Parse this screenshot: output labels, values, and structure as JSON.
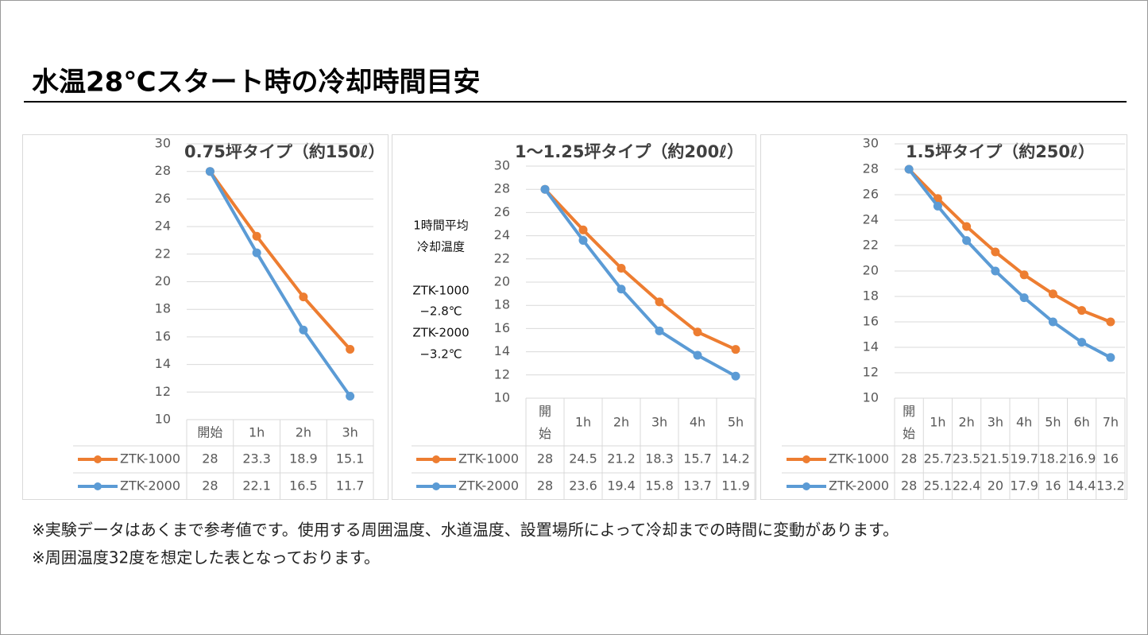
{
  "title": "水温28℃スタート時の冷却時間目安",
  "notes": [
    "※実験データはあくまで参考値です。使用する周囲温度、水道温度、設置場所によって冷却までの時間に変動があります。",
    "※周囲温度32度を想定した表となっております。"
  ],
  "chart_data": [
    {
      "type": "line",
      "title": "0.75坪タイプ（約150ℓ）",
      "categories": [
        "開始",
        "1h",
        "2h",
        "3h"
      ],
      "series": [
        {
          "name": "ZTK-1000",
          "color": "#ed7d31",
          "values": [
            28,
            23.3,
            18.9,
            15.1
          ]
        },
        {
          "name": "ZTK-2000",
          "color": "#5b9bd5",
          "values": [
            28,
            22.1,
            16.5,
            11.7
          ]
        }
      ],
      "ylim": [
        10,
        30
      ],
      "yticks": [
        10,
        12,
        14,
        16,
        18,
        20,
        22,
        24,
        26,
        28,
        30
      ],
      "grid": true
    },
    {
      "type": "line",
      "title": "1～1.25坪タイプ（約200ℓ）",
      "categories": [
        "開始",
        "1h",
        "2h",
        "3h",
        "4h",
        "5h"
      ],
      "annotations": [
        "1時間平均",
        "冷却温度",
        "ZTK-1000",
        "−2.8℃",
        "ZTK-2000",
        "−3.2℃"
      ],
      "series": [
        {
          "name": "ZTK-1000",
          "color": "#ed7d31",
          "values": [
            28,
            24.5,
            21.2,
            18.3,
            15.7,
            14.2
          ]
        },
        {
          "name": "ZTK-2000",
          "color": "#5b9bd5",
          "values": [
            28,
            23.6,
            19.4,
            15.8,
            13.7,
            11.9
          ]
        }
      ],
      "ylim": [
        10,
        30
      ],
      "yticks": [
        10,
        12,
        14,
        16,
        18,
        20,
        22,
        24,
        26,
        28,
        30
      ],
      "grid": true
    },
    {
      "type": "line",
      "title": "1.5坪タイプ（約250ℓ）",
      "categories": [
        "開始",
        "1h",
        "2h",
        "3h",
        "4h",
        "5h",
        "6h",
        "7h"
      ],
      "series": [
        {
          "name": "ZTK-1000",
          "color": "#ed7d31",
          "values": [
            28,
            25.7,
            23.5,
            21.5,
            19.7,
            18.2,
            16.9,
            16
          ]
        },
        {
          "name": "ZTK-2000",
          "color": "#5b9bd5",
          "values": [
            28,
            25.1,
            22.4,
            20,
            17.9,
            16,
            14.4,
            13.2
          ]
        }
      ],
      "ylim": [
        10,
        30
      ],
      "yticks": [
        10,
        12,
        14,
        16,
        18,
        20,
        22,
        24,
        26,
        28,
        30
      ],
      "grid": true
    }
  ]
}
